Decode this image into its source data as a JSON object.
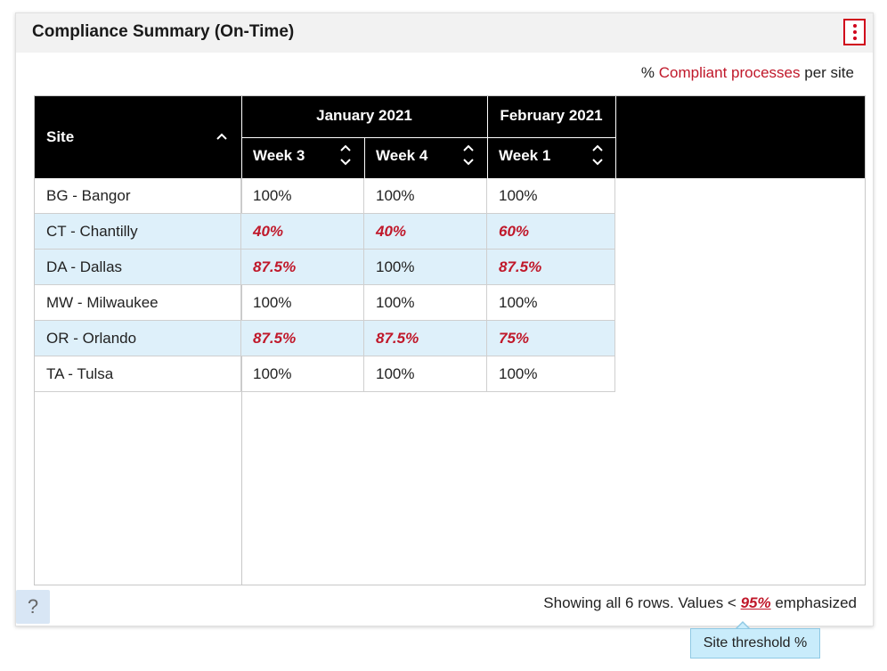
{
  "panel": {
    "title": "Compliance Summary (On-Time)",
    "subtitle_prefix": "% ",
    "subtitle_accent": "Compliant processes",
    "subtitle_suffix": " per site"
  },
  "table": {
    "site_header": "Site",
    "groups": [
      {
        "label": "January 2021",
        "weeks": [
          "Week 3",
          "Week 4"
        ]
      },
      {
        "label": "February 2021",
        "weeks": [
          "Week 1"
        ]
      }
    ],
    "rows": [
      {
        "site": "BG - Bangor",
        "values": [
          "100%",
          "100%",
          "100%"
        ],
        "low": [
          false,
          false,
          false
        ],
        "shaded": false
      },
      {
        "site": "CT - Chantilly",
        "values": [
          "40%",
          "40%",
          "60%"
        ],
        "low": [
          true,
          true,
          true
        ],
        "shaded": true
      },
      {
        "site": "DA - Dallas",
        "values": [
          "87.5%",
          "100%",
          "87.5%"
        ],
        "low": [
          true,
          false,
          true
        ],
        "shaded": true
      },
      {
        "site": "MW - Milwaukee",
        "values": [
          "100%",
          "100%",
          "100%"
        ],
        "low": [
          false,
          false,
          false
        ],
        "shaded": false
      },
      {
        "site": "OR - Orlando",
        "values": [
          "87.5%",
          "87.5%",
          "75%"
        ],
        "low": [
          true,
          true,
          true
        ],
        "shaded": true
      },
      {
        "site": "TA - Tulsa",
        "values": [
          "100%",
          "100%",
          "100%"
        ],
        "low": [
          false,
          false,
          false
        ],
        "shaded": false
      }
    ]
  },
  "footer": {
    "prefix": "Showing all 6 rows. Values < ",
    "threshold": "95%",
    "suffix": " emphasized"
  },
  "help_label": "?",
  "tooltip": "Site threshold %",
  "colors": {
    "accent": "#c0182a",
    "header_bg": "#000000",
    "row_shade": "#def0fa"
  },
  "icons": {
    "menu": "kebab-menu-icon",
    "site_sort": "chevron-up-icon",
    "week_sort": "sort-up-down-icon",
    "help": "question-mark-icon"
  }
}
